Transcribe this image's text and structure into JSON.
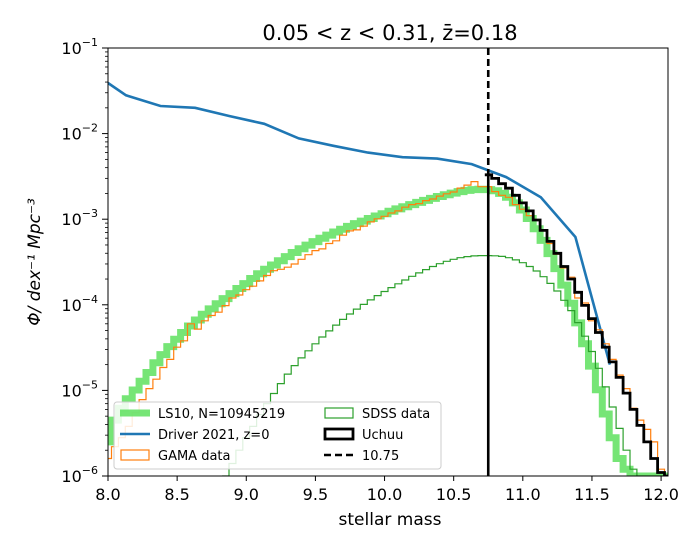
{
  "chart_data": {
    "type": "line",
    "title": "0.05 < z < 0.31, z̄=0.18",
    "xlabel": "stellar mass",
    "ylabel": "Φ/ dex⁻¹ Mpc⁻³",
    "xlim": [
      8.0,
      12.05
    ],
    "ylim": [
      1e-06,
      0.1
    ],
    "yscale": "log",
    "x_ticks": [
      8.0,
      8.5,
      9.0,
      9.5,
      10.0,
      10.5,
      11.0,
      11.5,
      12.0
    ],
    "x_tick_labels": [
      "8.0",
      "8.5",
      "9.0",
      "9.5",
      "10.0",
      "10.5",
      "11.0",
      "11.5",
      "12.0"
    ],
    "y_ticks": [
      1e-06,
      1e-05,
      0.0001,
      0.001,
      0.01,
      0.1
    ],
    "y_tick_labels": [
      {
        "base": "10",
        "exp": "−6"
      },
      {
        "base": "10",
        "exp": "−5"
      },
      {
        "base": "10",
        "exp": "−4"
      },
      {
        "base": "10",
        "exp": "−3"
      },
      {
        "base": "10",
        "exp": "−2"
      },
      {
        "base": "10",
        "exp": "−1"
      }
    ],
    "grid": false,
    "legend_placement": "lower-left",
    "legend_entries": [
      "LS10, N=10945219",
      "Driver 2021, z=0",
      "GAMA data",
      "SDSS data",
      "Uchuu",
      "10.75"
    ],
    "vline": {
      "x": 10.75,
      "name": "10.75",
      "color": "#000000"
    },
    "series": [
      {
        "name": "LS10, N=10945219",
        "color": "#5ee05e",
        "style": "steps-thick",
        "x": [
          8.0,
          8.05,
          8.1,
          8.15,
          8.2,
          8.25,
          8.3,
          8.35,
          8.4,
          8.45,
          8.5,
          8.55,
          8.6,
          8.65,
          8.7,
          8.75,
          8.8,
          8.85,
          8.9,
          8.95,
          9.0,
          9.05,
          9.1,
          9.15,
          9.2,
          9.25,
          9.3,
          9.35,
          9.4,
          9.45,
          9.5,
          9.55,
          9.6,
          9.65,
          9.7,
          9.75,
          9.8,
          9.85,
          9.9,
          9.95,
          10.0,
          10.05,
          10.1,
          10.15,
          10.2,
          10.25,
          10.3,
          10.35,
          10.4,
          10.45,
          10.5,
          10.55,
          10.6,
          10.65,
          10.7,
          10.75,
          10.8,
          10.85,
          10.9,
          10.95,
          11.0,
          11.05,
          11.1,
          11.15,
          11.2,
          11.25,
          11.3,
          11.35,
          11.4,
          11.45,
          11.5,
          11.55,
          11.6,
          11.65,
          11.7,
          11.75,
          11.8,
          11.85,
          11.9,
          11.95,
          12.0,
          12.05
        ],
        "values": [
          2.5e-06,
          4.5e-06,
          6.2e-06,
          8e-06,
          1.01e-05,
          1.28e-05,
          1.62e-05,
          2.1e-05,
          2.62e-05,
          3.25e-05,
          3.95e-05,
          4.75e-05,
          5.65e-05,
          6.65e-05,
          7.75e-05,
          8.95e-05,
          0.000103,
          0.000118,
          0.000135,
          0.000155,
          0.000177,
          0.000203,
          0.00023,
          0.00026,
          0.000292,
          0.000327,
          0.000366,
          0.000408,
          0.000452,
          0.000498,
          0.000548,
          0.000598,
          0.000652,
          0.000708,
          0.000765,
          0.000825,
          0.000888,
          0.00095,
          0.00102,
          0.00109,
          0.00116,
          0.00124,
          0.00132,
          0.0014,
          0.00148,
          0.00157,
          0.00166,
          0.00175,
          0.00184,
          0.00193,
          0.00202,
          0.0021,
          0.00217,
          0.00222,
          0.00224,
          0.00222,
          0.00215,
          0.002,
          0.0018,
          0.00155,
          0.00128,
          0.00102,
          0.000775,
          0.000565,
          0.000396,
          0.000265,
          0.00017,
          0.000104,
          6.15e-05,
          3.5e-05,
          1.92e-05,
          1.02e-05,
          5.3e-06,
          2.8e-06,
          1.6e-06,
          1.2e-06,
          1e-06,
          1e-06,
          1e-06,
          1e-06,
          1e-06,
          1e-06
        ]
      },
      {
        "name": "Driver 2021, z=0",
        "color": "#1f77b4",
        "style": "line",
        "x": [
          8.0,
          8.13,
          8.38,
          8.63,
          8.88,
          9.13,
          9.38,
          9.63,
          9.88,
          10.13,
          10.38,
          10.63,
          10.88,
          11.13,
          11.38,
          11.63
        ],
        "values": [
          0.039,
          0.028,
          0.021,
          0.02,
          0.016,
          0.013,
          0.0088,
          0.0072,
          0.006,
          0.0053,
          0.0051,
          0.0044,
          0.0031,
          0.0018,
          0.00062,
          2e-05
        ]
      },
      {
        "name": "GAMA data",
        "color": "#ff7f0e",
        "style": "steps",
        "x": [
          7.95,
          8.0,
          8.05,
          8.1,
          8.15,
          8.2,
          8.25,
          8.3,
          8.35,
          8.4,
          8.45,
          8.5,
          8.55,
          8.6,
          8.65,
          8.7,
          8.75,
          8.8,
          8.85,
          8.9,
          8.95,
          9.0,
          9.05,
          9.1,
          9.15,
          9.2,
          9.25,
          9.3,
          9.35,
          9.4,
          9.45,
          9.5,
          9.55,
          9.6,
          9.65,
          9.7,
          9.75,
          9.8,
          9.85,
          9.9,
          9.95,
          10.0,
          10.05,
          10.1,
          10.15,
          10.2,
          10.25,
          10.3,
          10.35,
          10.4,
          10.45,
          10.5,
          10.55,
          10.6,
          10.65,
          10.7,
          10.75,
          10.8,
          10.85,
          10.9,
          10.95,
          11.0,
          11.05,
          11.1,
          11.15,
          11.2,
          11.25,
          11.3,
          11.35,
          11.4,
          11.45,
          11.5,
          11.55,
          11.6,
          11.65,
          11.7,
          11.75,
          11.8,
          11.85,
          11.9,
          11.95,
          12.0,
          12.05
        ],
        "values": [
          1e-06,
          1.6e-06,
          2.2e-06,
          2.8e-06,
          3.8e-06,
          5.5e-06,
          7.8e-06,
          1.05e-05,
          1.35e-05,
          1.85e-05,
          2.3e-05,
          3.2e-05,
          3.8e-05,
          6e-05,
          5.2e-05,
          6.5e-05,
          7.5e-05,
          8.2e-05,
          9.8e-05,
          0.00012,
          0.00013,
          0.00015,
          0.000165,
          0.00019,
          0.00022,
          0.00025,
          0.00026,
          0.000275,
          0.0003,
          0.00034,
          0.000385,
          0.00043,
          0.00045,
          0.00052,
          0.00056,
          0.00065,
          0.00073,
          0.00075,
          0.00083,
          0.00093,
          0.00101,
          0.00108,
          0.00118,
          0.00125,
          0.00138,
          0.00148,
          0.00152,
          0.00165,
          0.00172,
          0.00186,
          0.00198,
          0.00208,
          0.00231,
          0.0025,
          0.00275,
          0.0024,
          0.0024,
          0.0021,
          0.0019,
          0.0018,
          0.00148,
          0.00131,
          0.0011,
          0.00098,
          0.00075,
          0.00052,
          0.00039,
          0.00027,
          0.00021,
          0.00012,
          0.000105,
          6.5e-05,
          5.1e-05,
          3.5e-05,
          2.3e-05,
          1.51e-05,
          1.05e-05,
          6.2e-06,
          4.5e-06,
          3.5e-06,
          2.5e-06,
          1.2e-06,
          1e-06
        ]
      },
      {
        "name": "SDSS data",
        "color": "#2ca02c",
        "style": "steps",
        "x": [
          8.85,
          8.9,
          8.95,
          9.0,
          9.05,
          9.1,
          9.15,
          9.2,
          9.25,
          9.3,
          9.35,
          9.4,
          9.45,
          9.5,
          9.55,
          9.6,
          9.65,
          9.7,
          9.75,
          9.8,
          9.85,
          9.9,
          9.95,
          10.0,
          10.05,
          10.1,
          10.15,
          10.2,
          10.25,
          10.3,
          10.35,
          10.4,
          10.45,
          10.5,
          10.55,
          10.6,
          10.65,
          10.7,
          10.75,
          10.8,
          10.85,
          10.9,
          10.95,
          11.0,
          11.05,
          11.1,
          11.15,
          11.2,
          11.25,
          11.3,
          11.35,
          11.4,
          11.45,
          11.5,
          11.55,
          11.6,
          11.65,
          11.7,
          11.75,
          11.8,
          11.85,
          11.9,
          11.95,
          12.0
        ],
        "values": [
          1e-06,
          1.4e-06,
          2e-06,
          2.8e-06,
          3.8e-06,
          5.2e-06,
          7e-06,
          9.2e-06,
          1.2e-05,
          1.55e-05,
          1.95e-05,
          2.4e-05,
          2.9e-05,
          3.5e-05,
          4.2e-05,
          4.95e-05,
          5.8e-05,
          6.75e-05,
          7.8e-05,
          8.9e-05,
          0.000101,
          0.000114,
          0.000128,
          0.000143,
          0.000159,
          0.000176,
          0.000195,
          0.000215,
          0.000236,
          0.000258,
          0.00028,
          0.000302,
          0.000322,
          0.00034,
          0.000355,
          0.000366,
          0.000373,
          0.000376,
          0.000376,
          0.000374,
          0.000368,
          0.000355,
          0.000335,
          0.00031,
          0.00028,
          0.000248,
          0.000213,
          0.000178,
          0.000145,
          0.000113,
          8.55e-05,
          6.2e-05,
          4.3e-05,
          2.85e-05,
          1.81e-05,
          1.1e-05,
          6.4e-06,
          3.6e-06,
          2e-06,
          1.2e-06,
          1e-06,
          1e-06,
          1e-06,
          1e-06
        ]
      },
      {
        "name": "Uchuu",
        "color": "#000000",
        "style": "steps-bold",
        "x": [
          10.75,
          10.8,
          10.85,
          10.9,
          10.95,
          11.0,
          11.05,
          11.1,
          11.15,
          11.2,
          11.25,
          11.3,
          11.35,
          11.4,
          11.45,
          11.5,
          11.55,
          11.6,
          11.65,
          11.7,
          11.75,
          11.8,
          11.85,
          11.9,
          11.95,
          12.0,
          12.05
        ],
        "values": [
          0.0033,
          0.003,
          0.0026,
          0.0023,
          0.0019,
          0.00155,
          0.00125,
          0.00098,
          0.00074,
          0.00055,
          0.0004,
          0.00028,
          0.0002,
          0.00014,
          9.85e-05,
          6.9e-05,
          4.75e-05,
          3.2e-05,
          2.15e-05,
          1.42e-05,
          9.3e-06,
          6e-06,
          3.9e-06,
          2.5e-06,
          1.6e-06,
          1.1e-06,
          1e-06
        ]
      }
    ]
  }
}
